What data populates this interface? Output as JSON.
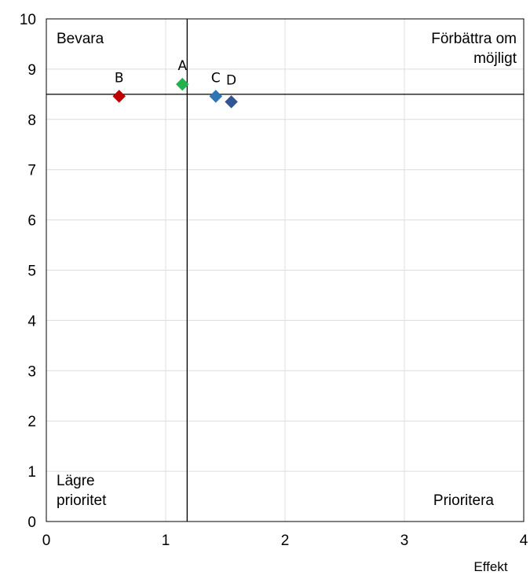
{
  "chart_data": {
    "type": "scatter",
    "title": "",
    "xlabel": "Effekt",
    "ylabel": "",
    "xlim": [
      0,
      4
    ],
    "ylim": [
      0,
      10
    ],
    "xticks": [
      "0",
      "1",
      "2",
      "3",
      "4"
    ],
    "yticks": [
      "0",
      "1",
      "2",
      "3",
      "4",
      "5",
      "6",
      "7",
      "8",
      "9",
      "10"
    ],
    "grid": true,
    "reference_lines": {
      "x": 1.18,
      "y": 8.5
    },
    "points": [
      {
        "label": "A",
        "x": 1.14,
        "y": 8.7,
        "color": "#22b14c"
      },
      {
        "label": "B",
        "x": 0.61,
        "y": 8.46,
        "color": "#c00000"
      },
      {
        "label": "C",
        "x": 1.42,
        "y": 8.46,
        "color": "#2e75b6"
      },
      {
        "label": "D",
        "x": 1.55,
        "y": 8.35,
        "color": "#2f5597"
      }
    ],
    "quadrant_labels": {
      "top_left": [
        "Bevara"
      ],
      "top_right": [
        "Förbättra om",
        "möjligt"
      ],
      "bottom_left": [
        "Lägre",
        "prioritet"
      ],
      "bottom_right": [
        "Prioritera"
      ]
    }
  }
}
